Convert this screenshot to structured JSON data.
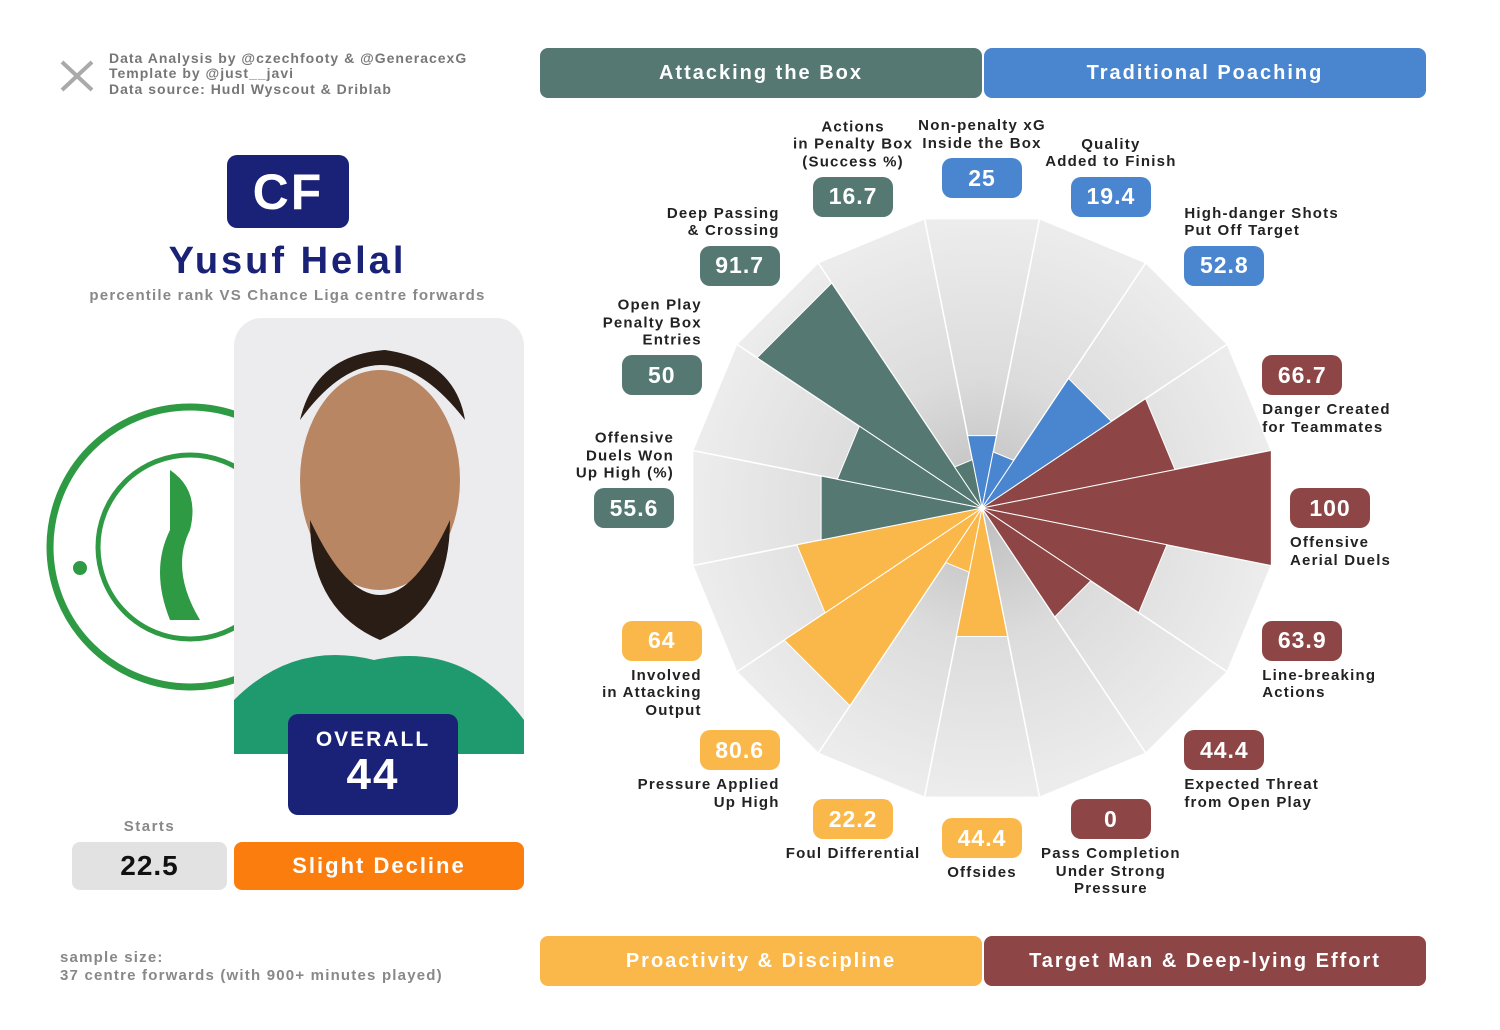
{
  "credits": [
    "Data Analysis by @czechfooty & @GeneracexG",
    "Template by @just__javi",
    "Data source: Hudl Wyscout & Driblab"
  ],
  "player": {
    "position": "CF",
    "name": "Yusuf Helal",
    "subtitle": "percentile rank VS Chance Liga centre forwards",
    "overall_label": "OVERALL",
    "overall": 44,
    "starts_label": "Starts",
    "starts": 22.5,
    "trend": "Slight Decline"
  },
  "footer": [
    "sample size:",
    "37 centre forwards (with 900+ minutes played)"
  ],
  "chart_data": {
    "type": "polar_bar",
    "groups": [
      {
        "name": "Attacking the Box",
        "color": "#557872"
      },
      {
        "name": "Traditional Poaching",
        "color": "#4a86d0"
      },
      {
        "name": "Proactivity & Discipline",
        "color": "#fbb84a"
      },
      {
        "name": "Target Man & Deep-lying Effort",
        "color": "#8e4545"
      }
    ],
    "categories": [
      "Non-penalty xG\nInside the Box",
      "Quality\nAdded to Finish",
      "High-danger Shots\nPut Off Target",
      "Danger Created\nfor Teammates",
      "Offensive\nAerial Duels",
      "Line-breaking\nActions",
      "Expected Threat\nfrom Open Play",
      "Pass Completion\nUnder Strong\nPressure",
      "Offsides",
      "Foul Differential",
      "Pressure Applied\nUp High",
      "Involved\nin Attacking\nOutput",
      "Offensive\nDuels Won\nUp High (%)",
      "Open Play\nPenalty Box\nEntries",
      "Deep Passing\n& Crossing",
      "Actions\nin Penalty Box\n(Success %)"
    ],
    "values": [
      25,
      19.4,
      52.8,
      66.7,
      100,
      63.9,
      44.4,
      0,
      44.4,
      22.2,
      80.6,
      64,
      55.6,
      50,
      91.7,
      16.7
    ],
    "colors": [
      "#4a86d0",
      "#4a86d0",
      "#4a86d0",
      "#8e4545",
      "#8e4545",
      "#8e4545",
      "#8e4545",
      "#8e4545",
      "#fbb84a",
      "#fbb84a",
      "#fbb84a",
      "#fbb84a",
      "#557872",
      "#557872",
      "#557872",
      "#557872"
    ],
    "ylim": [
      0,
      100
    ]
  }
}
